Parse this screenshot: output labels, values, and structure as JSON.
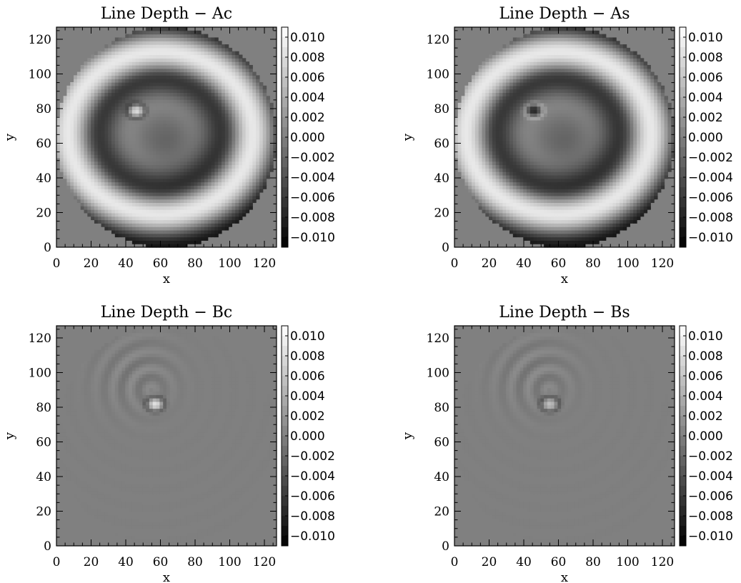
{
  "chart_data": [
    {
      "type": "heatmap",
      "title": "Line Depth − Ac",
      "xlabel": "x",
      "ylabel": "y",
      "xlim": [
        0,
        127
      ],
      "ylim": [
        0,
        127
      ],
      "xticks": [
        "0",
        "20",
        "40",
        "60",
        "80",
        "100",
        "120"
      ],
      "yticks": [
        "0",
        "20",
        "40",
        "60",
        "80",
        "100",
        "120"
      ],
      "colorbar": {
        "range": [
          -0.011,
          0.011
        ],
        "colormap": "grayscale",
        "ticks": [
          "0.010",
          "0.008",
          "0.006",
          "0.004",
          "0.002",
          "0.000",
          "−0.002",
          "−0.004",
          "−0.006",
          "−0.008",
          "−0.010"
        ]
      },
      "features": {
        "pattern": "rings",
        "ring_amplitude": 0.009,
        "hotspot_center": [
          46,
          79
        ],
        "hotspot_value": 0.008,
        "disk_center": [
          63.5,
          63.5
        ],
        "disk_radius": 63.5
      }
    },
    {
      "type": "heatmap",
      "title": "Line Depth − As",
      "xlabel": "x",
      "ylabel": "y",
      "xlim": [
        0,
        127
      ],
      "ylim": [
        0,
        127
      ],
      "xticks": [
        "0",
        "20",
        "40",
        "60",
        "80",
        "100",
        "120"
      ],
      "yticks": [
        "0",
        "20",
        "40",
        "60",
        "80",
        "100",
        "120"
      ],
      "colorbar": {
        "range": [
          -0.011,
          0.011
        ],
        "colormap": "grayscale",
        "ticks": [
          "0.010",
          "0.008",
          "0.006",
          "0.004",
          "0.002",
          "0.000",
          "−0.002",
          "−0.004",
          "−0.006",
          "−0.008",
          "−0.010"
        ]
      },
      "features": {
        "pattern": "rings",
        "ring_amplitude": 0.009,
        "hotspot_center": [
          46,
          79
        ],
        "hotspot_value": -0.008,
        "disk_center": [
          63.5,
          63.5
        ],
        "disk_radius": 63.5
      }
    },
    {
      "type": "heatmap",
      "title": "Line Depth − Bc",
      "xlabel": "x",
      "ylabel": "y",
      "xlim": [
        0,
        127
      ],
      "ylim": [
        0,
        127
      ],
      "xticks": [
        "0",
        "20",
        "40",
        "60",
        "80",
        "100",
        "120"
      ],
      "yticks": [
        "0",
        "20",
        "40",
        "60",
        "80",
        "100",
        "120"
      ],
      "colorbar": {
        "range": [
          -0.011,
          0.011
        ],
        "colormap": "grayscale",
        "ticks": [
          "0.010",
          "0.008",
          "0.006",
          "0.004",
          "0.002",
          "0.000",
          "−0.002",
          "−0.004",
          "−0.006",
          "−0.008",
          "−0.010"
        ]
      },
      "features": {
        "pattern": "flat",
        "ring_amplitude": 0.0,
        "hotspot_center": [
          57,
          82
        ],
        "hotspot_value": 0.009,
        "disk_center": [
          63.5,
          63.5
        ],
        "disk_radius": 63.5
      }
    },
    {
      "type": "heatmap",
      "title": "Line Depth − Bs",
      "xlabel": "x",
      "ylabel": "y",
      "xlim": [
        0,
        127
      ],
      "ylim": [
        0,
        127
      ],
      "xticks": [
        "0",
        "20",
        "40",
        "60",
        "80",
        "100",
        "120"
      ],
      "yticks": [
        "0",
        "20",
        "40",
        "60",
        "80",
        "100",
        "120"
      ],
      "colorbar": {
        "range": [
          -0.011,
          0.011
        ],
        "colormap": "grayscale",
        "ticks": [
          "0.010",
          "0.008",
          "0.006",
          "0.004",
          "0.002",
          "0.000",
          "−0.002",
          "−0.004",
          "−0.006",
          "−0.008",
          "−0.010"
        ]
      },
      "features": {
        "pattern": "flat",
        "ring_amplitude": 0.0,
        "hotspot_center": [
          55,
          82
        ],
        "hotspot_value": 0.006,
        "disk_center": [
          63.5,
          63.5
        ],
        "disk_radius": 63.5
      }
    }
  ]
}
